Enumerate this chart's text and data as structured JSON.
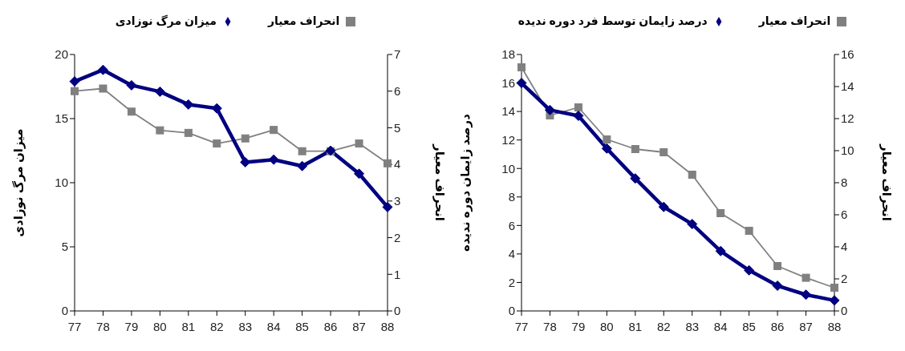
{
  "chart_data": [
    {
      "type": "line",
      "categories": [
        "77",
        "78",
        "79",
        "80",
        "81",
        "82",
        "83",
        "84",
        "85",
        "86",
        "87",
        "88"
      ],
      "ylabel": "میزان مرگ نوزادی",
      "y2label": "انحراف معیار",
      "ylim": [
        0,
        20
      ],
      "yticks": [
        0,
        5,
        10,
        15,
        20
      ],
      "y2lim": [
        0,
        7
      ],
      "y2ticks": [
        0,
        1,
        2,
        3,
        4,
        5,
        6,
        7
      ],
      "grid": false,
      "legend": "top",
      "series": [
        {
          "name": "انحراف معیار",
          "color": "#808080",
          "axis": "y2",
          "marker": "square",
          "values": [
            6.0,
            6.07,
            5.44,
            4.93,
            4.86,
            4.57,
            4.71,
            4.94,
            4.36,
            4.36,
            4.57,
            4.03
          ]
        },
        {
          "name": "میزان مرگ نوزادی",
          "color": "#000080",
          "marker": "diamond",
          "values": [
            17.9,
            18.8,
            17.6,
            17.1,
            16.1,
            15.8,
            11.6,
            11.8,
            11.3,
            12.5,
            10.7,
            8.1
          ]
        }
      ]
    },
    {
      "type": "line",
      "categories": [
        "77",
        "78",
        "79",
        "80",
        "81",
        "82",
        "83",
        "84",
        "85",
        "86",
        "87",
        "88"
      ],
      "ylabel": "درصد زایمان دوره ندیده",
      "y2label": "انحراف معیار",
      "ylim": [
        0,
        18
      ],
      "yticks": [
        0,
        2,
        4,
        6,
        8,
        10,
        12,
        14,
        16,
        18
      ],
      "y2lim": [
        0,
        16
      ],
      "y2ticks": [
        0,
        2,
        4,
        6,
        8,
        10,
        12,
        14,
        16
      ],
      "grid": false,
      "legend": "top",
      "series": [
        {
          "name": "انحراف معیار",
          "color": "#808080",
          "axis": "y2",
          "marker": "square",
          "values": [
            15.2,
            12.2,
            12.7,
            10.7,
            10.1,
            9.9,
            8.5,
            6.1,
            5.0,
            2.8,
            2.07,
            1.45
          ]
        },
        {
          "name": "درصد زایمان توسط فرد دوره ندیده",
          "color": "#000080",
          "marker": "diamond",
          "values": [
            16.0,
            14.1,
            13.7,
            11.4,
            9.3,
            7.3,
            6.1,
            4.2,
            2.85,
            1.77,
            1.14,
            0.74
          ]
        }
      ]
    }
  ]
}
